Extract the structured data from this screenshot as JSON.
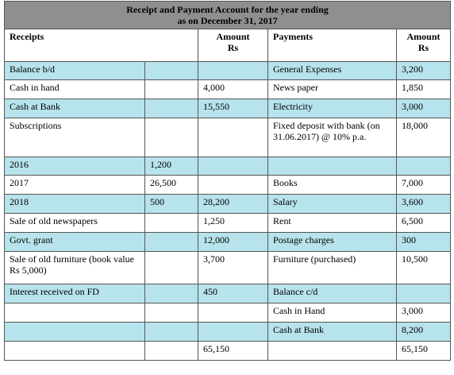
{
  "title": [
    "Receipt and Payment Account  for the year ending",
    "as on December 31, 2017"
  ],
  "header": {
    "receipts": "Receipts",
    "amount": [
      "Amount",
      "Rs"
    ],
    "payments": "Payments",
    "pay_amount": [
      "Amount",
      "Rs"
    ]
  },
  "rows": [
    {
      "receipt": "Balance b/d",
      "payment": "General Expenses",
      "pay_amount": "3,200"
    },
    {
      "receipt": "Cash in hand",
      "amount": "4,000",
      "payment": "News paper",
      "pay_amount": "1,850"
    },
    {
      "receipt": "Cash at Bank",
      "amount": "15,550",
      "payment": "Electricity",
      "pay_amount": "3,000"
    },
    {
      "receipt": "Subscriptions",
      "payment": "Fixed deposit with bank (on 31.06.2017) @ 10% p.a.",
      "pay_amount": "18,000"
    },
    {
      "receipt": "2016",
      "sub": "1,200"
    },
    {
      "receipt": "2017",
      "sub": "26,500",
      "payment": "Books",
      "pay_amount": "7,000"
    },
    {
      "receipt": "2018",
      "sub": "500",
      "amount": "28,200",
      "payment": "Salary",
      "pay_amount": "3,600"
    },
    {
      "receipt": "Sale of old newspapers",
      "amount": "1,250",
      "payment": "Rent",
      "pay_amount": "6,500"
    },
    {
      "receipt": "Govt. grant",
      "amount": "12,000",
      "payment": "Postage charges",
      "pay_amount": "300"
    },
    {
      "receipt": "Sale of old furniture (book value Rs 5,000)",
      "amount": "3,700",
      "payment": "Furniture (purchased)",
      "pay_amount": "10,500"
    },
    {
      "receipt": "Interest received on FD",
      "amount": "450",
      "payment": "Balance c/d"
    },
    {
      "payment": "Cash in Hand",
      "pay_amount": "3,000"
    },
    {
      "payment": "Cash at Bank",
      "pay_amount": "8,200"
    },
    {
      "amount": "65,150",
      "pay_amount": "65,150"
    }
  ]
}
